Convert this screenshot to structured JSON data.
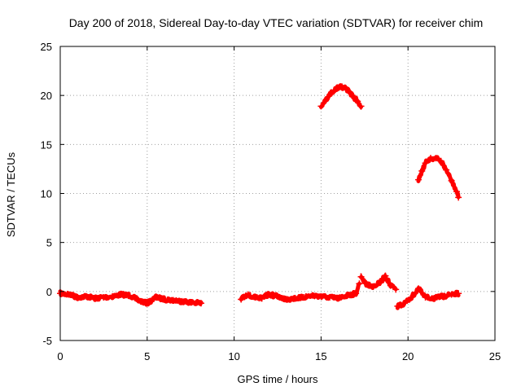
{
  "chart_data": {
    "type": "scatter",
    "title": "Day 200 of 2018, Sidereal Day-to-day VTEC variation (SDTVAR) for receiver chim",
    "xlabel": "GPS time / hours",
    "ylabel": "SDTVAR / TECUs",
    "xlim": [
      0,
      25
    ],
    "ylim": [
      -5,
      25
    ],
    "xticks": [
      "0",
      "5",
      "10",
      "15",
      "20",
      "25"
    ],
    "yticks": [
      "-5",
      "0",
      "5",
      "10",
      "15",
      "20",
      "25"
    ],
    "grid": true,
    "marker": "+",
    "color": "#ff0000",
    "series": [
      {
        "name": "segment-1",
        "x": [
          0,
          0.5,
          1,
          1.5,
          2,
          2.5,
          3,
          3.5,
          4,
          4.5,
          5,
          5.5,
          6,
          6.5,
          7,
          7.5,
          8.1
        ],
        "y": [
          -0.2,
          -0.3,
          -0.6,
          -0.5,
          -0.7,
          -0.6,
          -0.5,
          -0.3,
          -0.4,
          -0.9,
          -1.2,
          -0.6,
          -0.8,
          -0.9,
          -1,
          -1.1,
          -1.2
        ]
      },
      {
        "name": "segment-2",
        "x": [
          10.4,
          10.8,
          11.2,
          11.6,
          12,
          12.5,
          13,
          13.5,
          14,
          14.5,
          15,
          15.5,
          16,
          16.5,
          17,
          17.2
        ],
        "y": [
          -0.8,
          -0.3,
          -0.6,
          -0.7,
          -0.3,
          -0.5,
          -0.8,
          -0.7,
          -0.6,
          -0.4,
          -0.5,
          -0.6,
          -0.7,
          -0.4,
          -0.2,
          0.8
        ]
      },
      {
        "name": "segment-3",
        "x": [
          17.3,
          17.6,
          18,
          18.4,
          18.7,
          19,
          19.3
        ],
        "y": [
          1.5,
          0.8,
          0.5,
          0.9,
          1.6,
          0.6,
          0.2
        ]
      },
      {
        "name": "segment-4",
        "x": [
          19.4,
          19.8,
          20.2,
          20.6,
          21,
          21.5,
          22,
          22.5,
          22.9
        ],
        "y": [
          -1.5,
          -1.2,
          -0.6,
          0.3,
          -0.6,
          -0.7,
          -0.5,
          -0.3,
          -0.2
        ]
      },
      {
        "name": "arc-1",
        "x": [
          15,
          15.3,
          15.6,
          15.9,
          16.2,
          16.5,
          16.8,
          17.1,
          17.3
        ],
        "y": [
          18.9,
          19.6,
          20.3,
          20.7,
          20.9,
          20.6,
          20,
          19.4,
          18.9
        ]
      },
      {
        "name": "arc-2",
        "x": [
          20.6,
          20.8,
          21,
          21.3,
          21.6,
          21.9,
          22.2,
          22.5,
          22.8,
          22.9
        ],
        "y": [
          11.4,
          12.3,
          13.1,
          13.6,
          13.6,
          13.3,
          12.4,
          11.3,
          10.2,
          9.6
        ]
      }
    ]
  }
}
